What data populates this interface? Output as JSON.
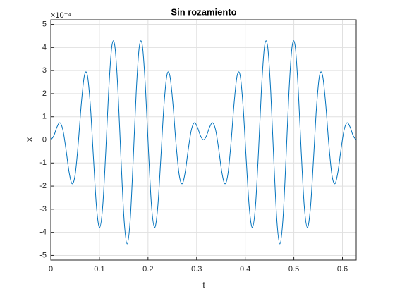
{
  "chart_data": {
    "type": "line",
    "title": "Sin rozamiento",
    "xlabel": "t",
    "ylabel": "x",
    "y_multiplier": "×10⁻⁴",
    "x": [
      0,
      0.0063,
      0.0126,
      0.0188,
      0.0251,
      0.0314,
      0.0377,
      0.044,
      0.0503,
      0.0565,
      0.0628,
      0.0691,
      0.0754,
      0.0817,
      0.088,
      0.0942,
      0.1005,
      0.1068,
      0.1131,
      0.1194,
      0.1257,
      0.1319,
      0.1382,
      0.1445,
      0.1508,
      0.1571,
      0.1634,
      0.1696,
      0.1759,
      0.1822,
      0.1885,
      0.1948,
      0.2011,
      0.2073,
      0.2136,
      0.2199,
      0.2262,
      0.2325,
      0.2388,
      0.245,
      0.2513,
      0.2576,
      0.2639,
      0.2702,
      0.2765,
      0.2827,
      0.289,
      0.2953,
      0.3016,
      0.3079,
      0.3142,
      0.3204,
      0.3267,
      0.333,
      0.3393,
      0.3456,
      0.3519,
      0.3581,
      0.3644,
      0.3707,
      0.377,
      0.3833,
      0.3896,
      0.3958,
      0.4021,
      0.4084,
      0.4147,
      0.421,
      0.4273,
      0.4335,
      0.4398,
      0.4461,
      0.4524,
      0.4587,
      0.465,
      0.4712,
      0.4775,
      0.4838,
      0.4901,
      0.4964,
      0.5027,
      0.5089,
      0.5152,
      0.5215,
      0.5278,
      0.5341,
      0.5404,
      0.5466,
      0.5529,
      0.5592,
      0.5655,
      0.5718,
      0.5781,
      0.5843,
      0.5906,
      0.5969,
      0.6032,
      0.6095,
      0.6158,
      0.622,
      0.6283
    ],
    "series": [
      {
        "color": "#0072bd",
        "values": [
          0,
          0.18,
          0.55,
          0.74,
          0.41,
          -0.43,
          -1.4,
          -1.9,
          -1.48,
          -0.15,
          1.56,
          2.78,
          2.79,
          1.4,
          -0.86,
          -2.95,
          -3.79,
          -2.88,
          -0.51,
          2.24,
          4.07,
          4.05,
          2.13,
          -0.84,
          -3.46,
          -4.5,
          -3.46,
          -0.84,
          2.13,
          4.05,
          4.07,
          2.24,
          -0.51,
          -2.88,
          -3.79,
          -2.95,
          -0.86,
          1.4,
          2.79,
          2.78,
          1.56,
          -0.15,
          -1.48,
          -1.9,
          -1.4,
          -0.43,
          0.41,
          0.74,
          0.55,
          0.18,
          0,
          0.18,
          0.55,
          0.74,
          0.41,
          -0.43,
          -1.4,
          -1.9,
          -1.48,
          -0.15,
          1.56,
          2.78,
          2.79,
          1.4,
          -0.86,
          -2.95,
          -3.79,
          -2.88,
          -0.51,
          2.24,
          4.07,
          4.05,
          2.13,
          -0.84,
          -3.46,
          -4.5,
          -3.46,
          -0.84,
          2.13,
          4.05,
          4.07,
          2.24,
          -0.51,
          -2.88,
          -3.79,
          -2.95,
          -0.86,
          1.4,
          2.79,
          2.78,
          1.56,
          -0.15,
          -1.48,
          -1.9,
          -1.4,
          -0.43,
          0.41,
          0.74,
          0.55,
          0.18,
          0
        ]
      }
    ],
    "xlim": [
      0,
      0.6283
    ],
    "xticks": [
      0,
      0.1,
      0.2,
      0.3,
      0.4,
      0.5,
      0.6
    ],
    "ylim": [
      -5.2,
      5.2
    ],
    "yticks": [
      -5,
      -4,
      -3,
      -2,
      -1,
      0,
      1,
      2,
      3,
      4,
      5
    ],
    "grid": true
  }
}
